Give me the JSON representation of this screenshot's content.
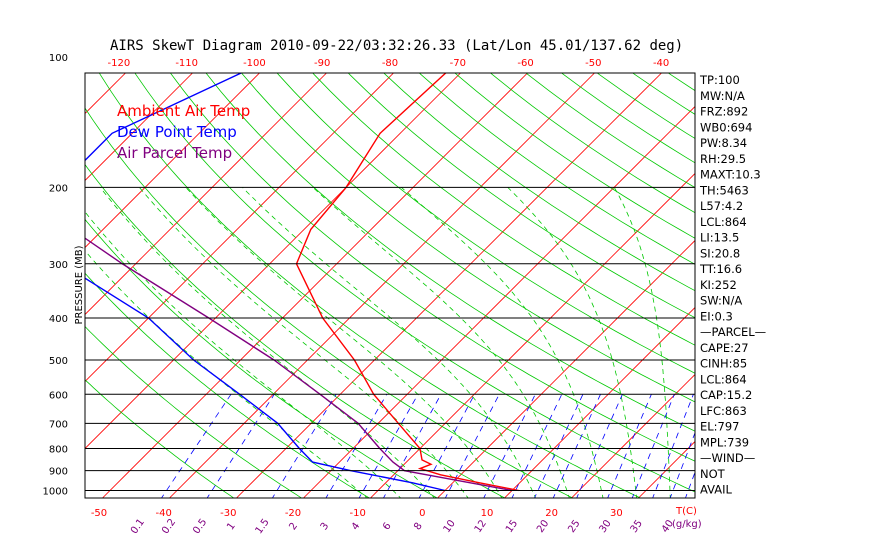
{
  "title": "AIRS SkewT Diagram 2010-09-22/03:32:26.33 (Lat/Lon 45.01/137.62 deg)",
  "colors": {
    "axis": "#000000",
    "isotherm": "#ff0000",
    "dry_adiabat": "#00c800",
    "moist_adiabat": "#00c800",
    "mixing_ratio": "#0000ff",
    "ambient": "#ff0000",
    "dewpoint": "#0000ff",
    "parcel": "#800080",
    "bottom_labels": "#ff0000",
    "mixing_labels": "#800080",
    "top_labels": "#ff0000"
  },
  "legend": [
    {
      "label": "Ambient Air Temp",
      "color": "#ff0000"
    },
    {
      "label": "Dew Point Temp",
      "color": "#0000ff"
    },
    {
      "label": "Air Parcel Temp",
      "color": "#800080"
    }
  ],
  "side_panel": [
    "TP:100",
    "MW:N/A",
    "FRZ:892",
    "WB0:694",
    "PW:8.34",
    "RH:29.5",
    "MAXT:10.3",
    "TH:5463",
    "L57:4.2",
    "LCL:864",
    "LI:13.5",
    "SI:20.8",
    "TT:16.6",
    "KI:252",
    "SW:N/A",
    "EI:0.3",
    "—PARCEL—",
    "CAPE:27",
    "CINH:85",
    "LCL:864",
    "CAP:15.2",
    "LFC:863",
    "EL:797",
    "MPL:739",
    "—WIND—",
    "NOT",
    "AVAIL"
  ],
  "chart_data": {
    "type": "line",
    "subtype": "skew-t log-p",
    "title": "AIRS SkewT Diagram 2010-09-22/03:32:26.33 (Lat/Lon 45.01/137.62 deg)",
    "ylabel": "PRESSURE (MB)",
    "xlabel": "T(C)",
    "mixing_ratio_unit": "(g/kg)",
    "pressure_range": [
      1050,
      100
    ],
    "pressure_ticks": [
      100,
      200,
      300,
      400,
      500,
      600,
      700,
      800,
      900,
      1000
    ],
    "bottom_temp_ticks": [
      -50,
      -40,
      -30,
      -20,
      -10,
      0,
      10,
      20,
      30
    ],
    "bottom_temp_range": [
      -50,
      40
    ],
    "top_temp_ticks": [
      -120,
      -110,
      -100,
      -90,
      -80,
      -70,
      -60,
      -50,
      -40
    ],
    "top_temp_range": [
      -125,
      -35
    ],
    "mixing_ratio_labels": [
      "0.1",
      "0.2",
      "0.5",
      "1",
      "1.5",
      "2",
      "3",
      "4",
      "6",
      "8",
      "10",
      "12",
      "15",
      "20",
      "25",
      "30",
      "35",
      "40"
    ],
    "isotherm_range_c": [
      -160,
      50
    ],
    "isotherm_step_c": 10,
    "dry_adiabat_theta_k": [
      240,
      250,
      260,
      270,
      280,
      290,
      300,
      310,
      320,
      330,
      340,
      350,
      360,
      370,
      380,
      390,
      400,
      410,
      420,
      430,
      440,
      450,
      460,
      470,
      480
    ],
    "moist_adiabat_start_c": [
      -10,
      -5,
      0,
      5,
      10,
      15,
      20,
      25,
      30,
      35,
      40
    ],
    "mixing_ratio_lines_gkg": [
      0.1,
      0.2,
      0.5,
      1,
      1.5,
      2,
      3,
      4,
      6,
      8,
      10,
      12,
      15,
      20,
      25,
      30,
      35,
      40
    ],
    "series": [
      {
        "name": "Ambient Air Temp",
        "p": [
          100,
          150,
          200,
          250,
          300,
          400,
          500,
          600,
          700,
          800,
          850,
          870,
          890,
          920,
          960,
          1000
        ],
        "t": [
          -62,
          -63,
          -60,
          -59,
          -56,
          -44,
          -33,
          -25,
          -17,
          -10,
          -8,
          -6,
          -7,
          -3,
          4,
          11
        ]
      },
      {
        "name": "Dew Point Temp",
        "p": [
          100,
          150,
          200,
          250,
          300,
          400,
          500,
          600,
          700,
          800,
          860,
          900,
          960,
          1000
        ],
        "t": [
          -90,
          -103,
          -103,
          -101,
          -91,
          -70,
          -57,
          -45,
          -35,
          -28,
          -24,
          -17,
          -6,
          0
        ]
      },
      {
        "name": "Air Parcel Temp",
        "p": [
          100,
          150,
          200,
          300,
          400,
          500,
          600,
          700,
          800,
          860,
          900,
          1000
        ],
        "t": [
          -131,
          -123,
          -110,
          -82,
          -61,
          -45,
          -33,
          -23,
          -16,
          -12,
          -9,
          10
        ]
      }
    ]
  }
}
